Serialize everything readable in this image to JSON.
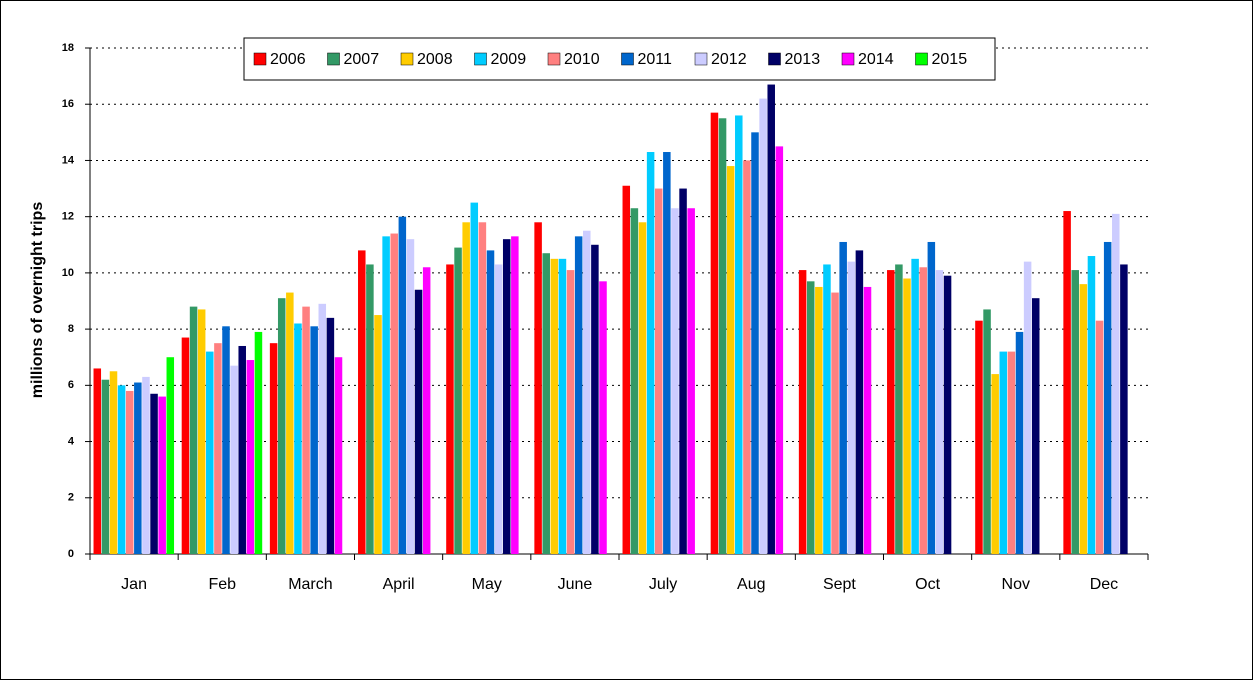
{
  "chart_data": {
    "type": "bar",
    "y_label": "millions of overnight trips",
    "categories": [
      "Jan",
      "Feb",
      "March",
      "April",
      "May",
      "June",
      "July",
      "Aug",
      "Sept",
      "Oct",
      "Nov",
      "Dec"
    ],
    "series": [
      {
        "name": "2006",
        "color": "#ff0000",
        "values": [
          6.6,
          7.7,
          7.5,
          10.8,
          10.3,
          11.8,
          13.1,
          15.7,
          10.1,
          10.1,
          8.3,
          12.2
        ]
      },
      {
        "name": "2007",
        "color": "#339966",
        "values": [
          6.2,
          8.8,
          9.1,
          10.3,
          10.9,
          10.7,
          12.3,
          15.5,
          9.7,
          10.3,
          8.7,
          10.1
        ]
      },
      {
        "name": "2008",
        "color": "#ffcc00",
        "values": [
          6.5,
          8.7,
          9.3,
          8.5,
          11.8,
          10.5,
          11.8,
          13.8,
          9.5,
          9.8,
          6.4,
          9.6
        ]
      },
      {
        "name": "2009",
        "color": "#00ccff",
        "values": [
          6.0,
          7.2,
          8.2,
          11.3,
          12.5,
          10.5,
          14.3,
          15.6,
          10.3,
          10.5,
          7.2,
          10.6
        ]
      },
      {
        "name": "2010",
        "color": "#ff8080",
        "values": [
          5.8,
          7.5,
          8.8,
          11.4,
          11.8,
          10.1,
          13.0,
          14.0,
          9.3,
          10.2,
          7.2,
          8.3
        ]
      },
      {
        "name": "2011",
        "color": "#0066cc",
        "values": [
          6.1,
          8.1,
          8.1,
          12.0,
          10.8,
          11.3,
          14.3,
          15.0,
          11.1,
          11.1,
          7.9,
          11.1
        ]
      },
      {
        "name": "2012",
        "color": "#ccccff",
        "values": [
          6.3,
          6.7,
          8.9,
          11.2,
          10.3,
          11.5,
          12.3,
          16.2,
          10.4,
          10.1,
          10.4,
          12.1
        ]
      },
      {
        "name": "2013",
        "color": "#000066",
        "values": [
          5.7,
          7.4,
          8.4,
          9.4,
          11.2,
          11.0,
          13.0,
          16.7,
          10.8,
          9.9,
          9.1,
          10.3
        ]
      },
      {
        "name": "2014",
        "color": "#ff00ff",
        "values": [
          5.6,
          6.9,
          7.0,
          10.2,
          11.3,
          9.7,
          12.3,
          14.5,
          9.5,
          null,
          null,
          null
        ]
      },
      {
        "name": "2015",
        "color": "#00ff00",
        "values": [
          7.0,
          7.9,
          null,
          null,
          null,
          null,
          null,
          null,
          null,
          null,
          null,
          null
        ]
      }
    ],
    "ylim": [
      0,
      18
    ],
    "yticks": [
      0,
      2,
      4,
      6,
      8,
      10,
      12,
      14,
      16,
      18
    ],
    "grid": true
  }
}
